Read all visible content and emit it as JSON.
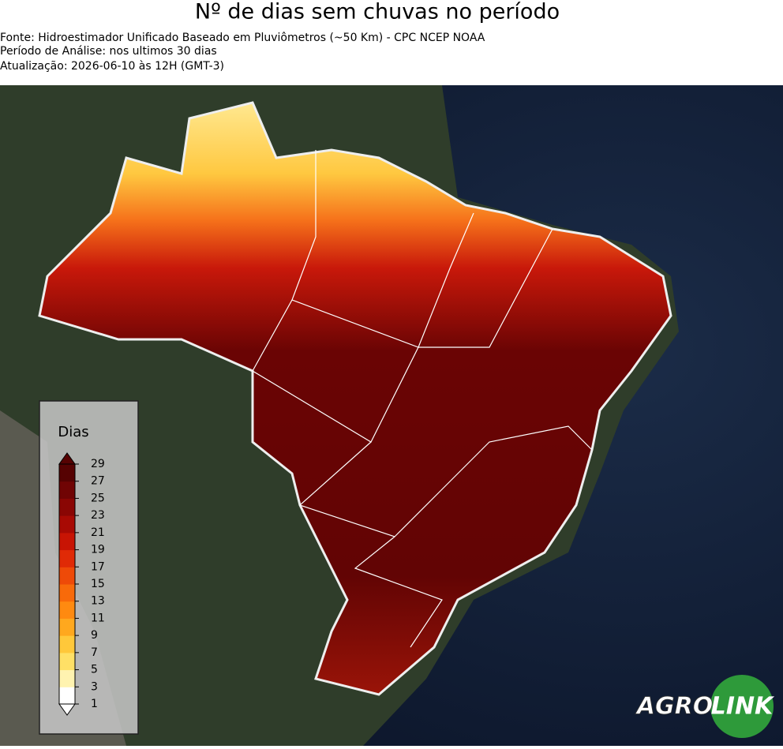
{
  "header": {
    "title": "Nº de dias sem chuvas no período",
    "lines": [
      "Fonte: Hidroestimador Unificado Baseado em Pluviômetros (~50 Km) - CPC NCEP NOAA",
      "Período de Análise: nos ultimos 30 dias",
      "Atualização: 2026-06-10 às 12H (GMT-3)"
    ]
  },
  "legend": {
    "title": "Dias",
    "ticks": [
      1,
      3,
      5,
      7,
      9,
      11,
      13,
      15,
      17,
      19,
      21,
      23,
      25,
      27,
      29
    ],
    "colors": [
      "#ffffff",
      "#fff3b0",
      "#ffe066",
      "#ffc83a",
      "#ffa81e",
      "#ff8a10",
      "#f86a0a",
      "#ee4a08",
      "#e02a06",
      "#c81404",
      "#a80a04",
      "#8a0604",
      "#700404",
      "#560202"
    ]
  },
  "logo": {
    "left": "AGRO",
    "right": "LINK"
  }
}
